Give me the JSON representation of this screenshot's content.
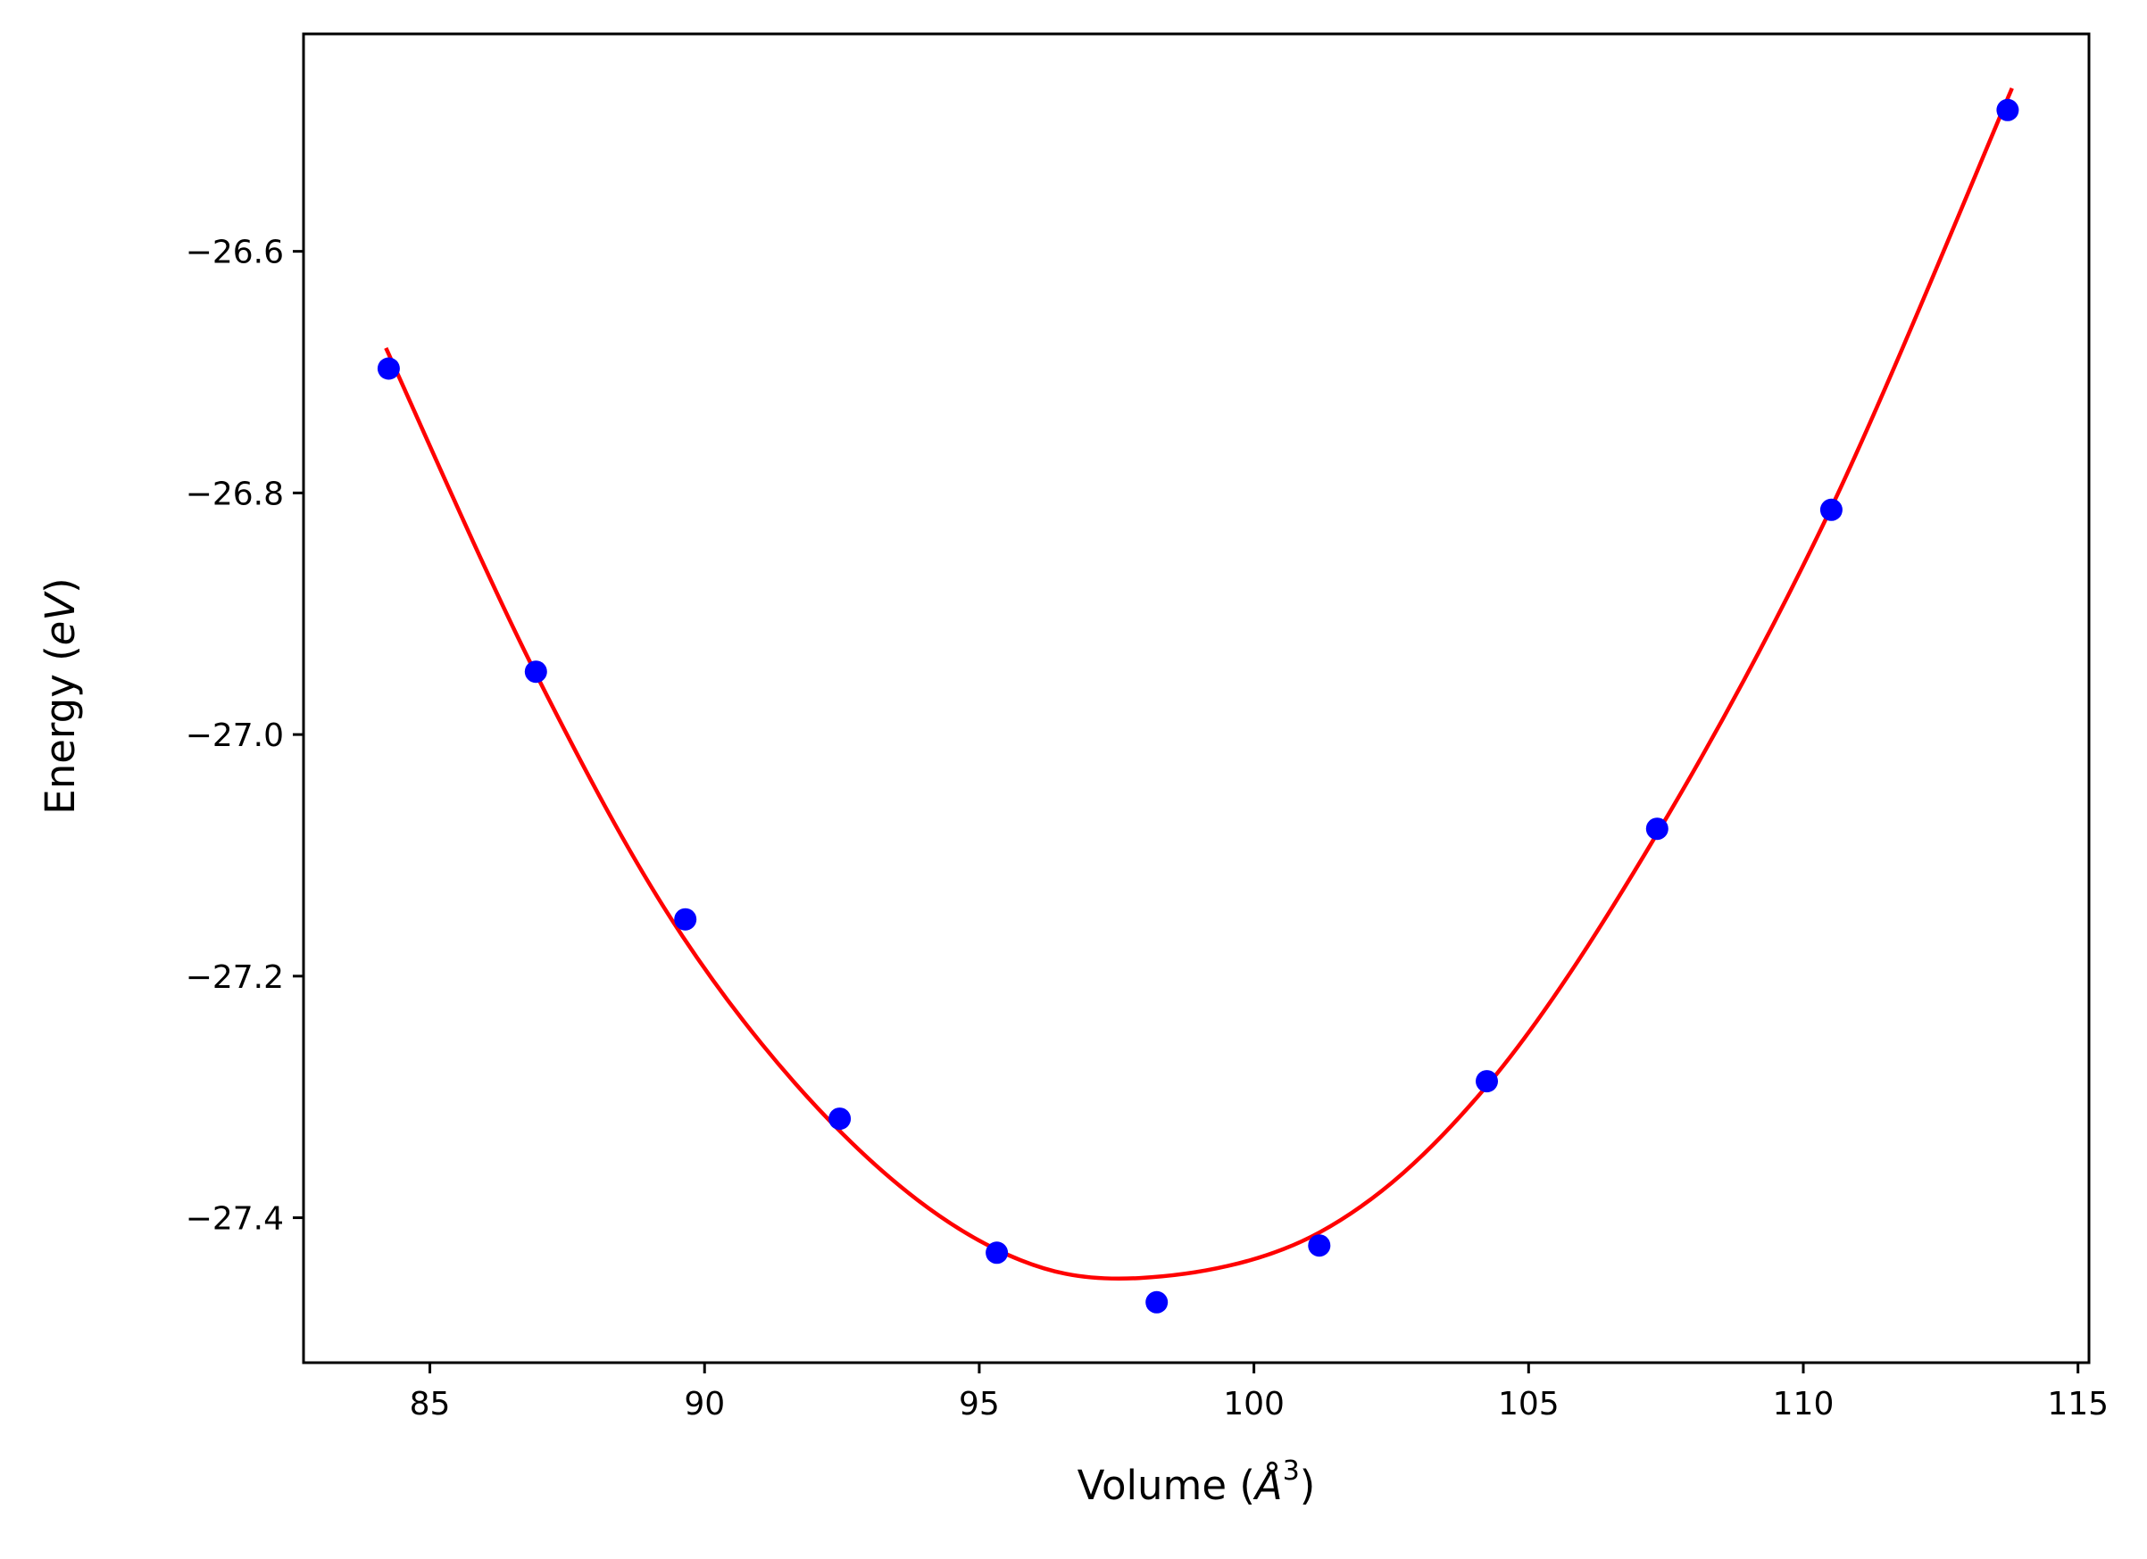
{
  "chart_data": {
    "type": "scatter",
    "xlabel": "Volume (Å³)",
    "xlabel_parts": {
      "prefix": "Volume (",
      "symbol": "Å",
      "exponent": "3",
      "suffix": ")"
    },
    "ylabel": "Energy (eV)",
    "ylabel_parts": {
      "prefix": "Energy (",
      "unit": "eV",
      "suffix": ")"
    },
    "xlim": [
      82.7,
      115.2
    ],
    "ylim": [
      -27.52,
      -26.42
    ],
    "x_ticks": [
      85,
      90,
      95,
      100,
      105,
      110,
      115
    ],
    "x_tick_labels": [
      "85",
      "90",
      "95",
      "100",
      "105",
      "110",
      "115"
    ],
    "y_ticks": [
      -26.6,
      -26.8,
      -27.0,
      -27.2,
      -27.4
    ],
    "y_tick_labels": [
      "−26.6",
      "−26.8",
      "−27.0",
      "−27.2",
      "−27.4"
    ],
    "grid": false,
    "series": [
      {
        "kind": "scatter",
        "color": "#0000ff",
        "x": [
          84.25,
          86.93,
          89.65,
          92.46,
          95.32,
          98.23,
          101.19,
          104.24,
          107.34,
          110.51,
          113.72
        ],
        "y": [
          -26.697,
          -26.948,
          -27.153,
          -27.318,
          -27.429,
          -27.47,
          -27.423,
          -27.287,
          -27.078,
          -26.814,
          -26.483
        ]
      },
      {
        "kind": "line",
        "color": "#ff0000",
        "x": [
          84.2,
          86.9,
          89.6,
          92.5,
          95.3,
          97.9,
          101.2,
          104.2,
          107.3,
          110.5,
          113.8
        ],
        "y": [
          -26.68,
          -26.947,
          -27.167,
          -27.33,
          -27.426,
          -27.45,
          -27.412,
          -27.293,
          -27.085,
          -26.813,
          -26.465
        ]
      }
    ]
  }
}
